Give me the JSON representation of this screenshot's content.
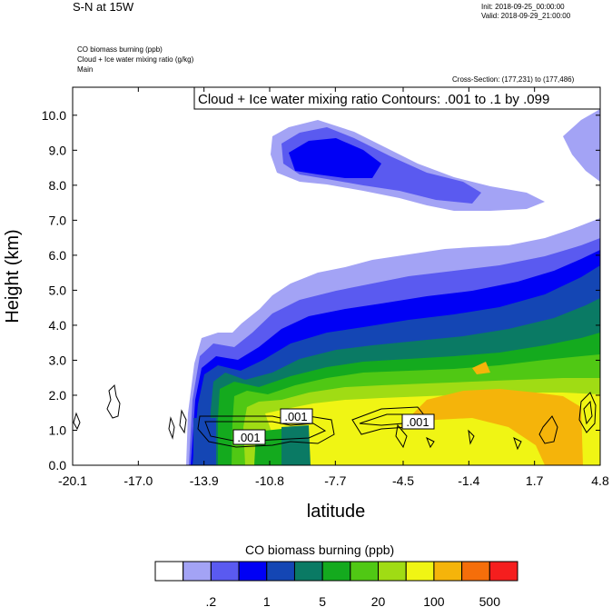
{
  "header": {
    "title": "S-N at 15W",
    "init": "Init: 2018-09-25_00:00:00",
    "valid": "Valid: 2018-09-29_21:00:00"
  },
  "fields": {
    "line1": "CO biomass burning   (ppb)",
    "line2": "Cloud + Ice water mixing ratio   (g/kg)",
    "line3": "Main"
  },
  "cross_section": "Cross-Section: (177,231) to (177,486)",
  "contour_info": "Cloud + Ice water mixing ratio Contours: .001 to .1 by .099",
  "colors": {
    "levels": [
      "#ffffff",
      "#a3a3f5",
      "#5a5af0",
      "#0000f5",
      "#1446b4",
      "#0a7a64",
      "#14aa1e",
      "#50c814",
      "#a0dc14",
      "#f0f514",
      "#f5b40a",
      "#f56e0a",
      "#f51e1e"
    ]
  },
  "chart_data": {
    "type": "heatmap",
    "xlabel": "latitude",
    "ylabel": "Height (km)",
    "x_ticks": [
      "-20.1",
      "-17.0",
      "-13.9",
      "-10.8",
      "-7.7",
      "-4.5",
      "-1.4",
      "1.7",
      "4.8"
    ],
    "y_ticks": [
      "0.0",
      "1.0",
      "2.0",
      "3.0",
      "4.0",
      "5.0",
      "6.0",
      "7.0",
      "8.0",
      "9.0",
      "10.0"
    ],
    "xlim": [
      -20.1,
      4.8
    ],
    "ylim": [
      0,
      10.8
    ],
    "contour_labels": [
      ".001",
      ".001",
      ".001"
    ],
    "colorbar": {
      "title": "CO biomass burning  (ppb)",
      "tick_labels": [
        ".2",
        "1",
        "5",
        "20",
        "100",
        "500"
      ]
    }
  }
}
